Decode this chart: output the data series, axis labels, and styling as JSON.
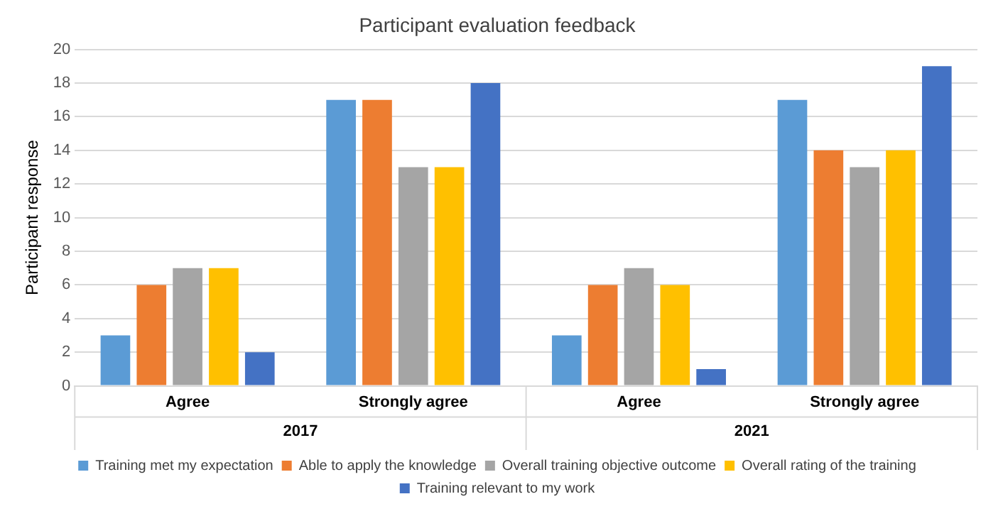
{
  "chart_data": {
    "type": "bar",
    "title": "Participant evaluation feedback",
    "ylabel": "Participant response",
    "categories": [
      "Agree",
      "Strongly agree",
      "Agree",
      "Strongly agree"
    ],
    "series": [
      {
        "name": "Training met my expectation",
        "color": "#5b9bd5",
        "values": [
          3,
          17,
          3,
          17
        ]
      },
      {
        "name": "Able to apply the knowledge",
        "color": "#ed7d31",
        "values": [
          6,
          17,
          6,
          14
        ]
      },
      {
        "name": "Overall training objective outcome",
        "color": "#a5a5a5",
        "values": [
          7,
          13,
          7,
          13
        ]
      },
      {
        "name": "Overall rating of the training",
        "color": "#ffc000",
        "values": [
          7,
          13,
          6,
          14
        ]
      },
      {
        "name": "Training relevant to my work",
        "color": "#4472c4",
        "values": [
          2,
          18,
          1,
          19
        ]
      }
    ],
    "ylim": [
      0,
      20
    ],
    "yticks": [
      0,
      2,
      4,
      6,
      8,
      10,
      12,
      14,
      16,
      18,
      20
    ],
    "grid": "y",
    "legend": "bottom",
    "annotations": [
      "2017",
      "2021"
    ]
  }
}
